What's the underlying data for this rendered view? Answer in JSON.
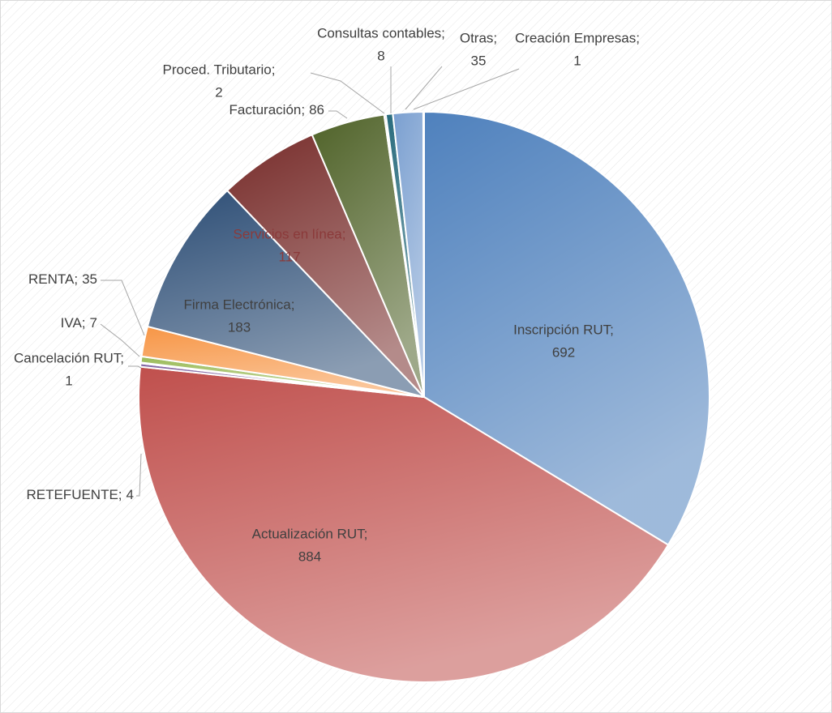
{
  "chart_data": {
    "type": "pie",
    "categories": [
      "Inscripción RUT;",
      "Actualización RUT;",
      "RETEFUENTE;",
      "Cancelación RUT;",
      "IVA;",
      "RENTA;",
      "Firma Electrónica;",
      "Servicios en línea;",
      "Facturación;",
      "Proced. Tributario;",
      "Consultas contables;",
      "Otras;",
      "Creación Empresas;"
    ],
    "values": [
      692,
      884,
      4,
      1,
      7,
      35,
      183,
      117,
      86,
      2,
      8,
      35,
      1
    ],
    "colors": [
      "#4f81bd",
      "#c0504d",
      "#8064a2",
      "#4bacc6",
      "#9bbb59",
      "#f79646",
      "#2c4d75",
      "#772c2a",
      "#4f6228",
      "#5c4776",
      "#276a7c",
      "#7a9fd0",
      "#b65708"
    ]
  }
}
